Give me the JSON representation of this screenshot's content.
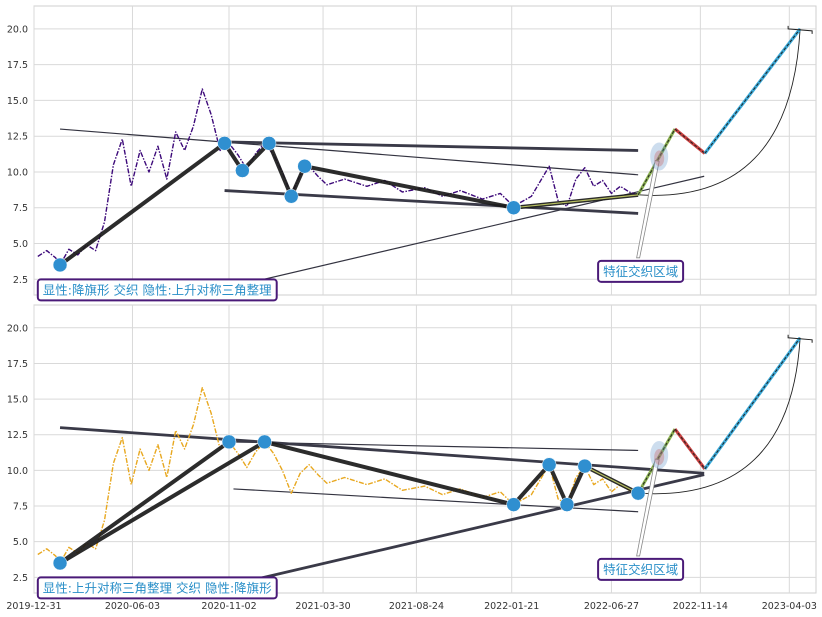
{
  "chart_data": [
    {
      "type": "line",
      "title": "",
      "xlabel": "",
      "ylabel": "",
      "ylim": [
        1.4,
        21.6
      ],
      "yticks": [
        "2.5",
        "5.0",
        "7.5",
        "10.0",
        "12.5",
        "15.0",
        "17.5",
        "20.0"
      ],
      "grid": true,
      "colors": {
        "price": "#3d0a7a",
        "points": "#2f8fd0",
        "annotation_border": "#4a1a78",
        "annotation_text": "#2a8fc8",
        "projection_up": "#3aa9d8",
        "projection_down": "#c84040"
      },
      "price_series": [
        [
          "2020-01-06",
          4.1
        ],
        [
          "2020-01-20",
          4.5
        ],
        [
          "2020-02-03",
          4.0
        ],
        [
          "2020-02-10",
          3.5
        ],
        [
          "2020-02-24",
          4.6
        ],
        [
          "2020-03-09",
          4.2
        ],
        [
          "2020-03-23",
          4.9
        ],
        [
          "2020-04-06",
          4.5
        ],
        [
          "2020-04-20",
          6.5
        ],
        [
          "2020-05-04",
          10.5
        ],
        [
          "2020-05-18",
          12.3
        ],
        [
          "2020-06-01",
          9.0
        ],
        [
          "2020-06-15",
          11.5
        ],
        [
          "2020-06-29",
          10.0
        ],
        [
          "2020-07-13",
          11.8
        ],
        [
          "2020-07-27",
          9.5
        ],
        [
          "2020-08-10",
          12.8
        ],
        [
          "2020-08-24",
          11.5
        ],
        [
          "2020-09-07",
          13.2
        ],
        [
          "2020-09-21",
          15.8
        ],
        [
          "2020-10-05",
          14.0
        ],
        [
          "2020-10-19",
          11.5
        ],
        [
          "2020-11-02",
          12.0
        ],
        [
          "2020-11-16",
          11.2
        ],
        [
          "2020-11-30",
          10.2
        ],
        [
          "2020-12-14",
          11.3
        ],
        [
          "2020-12-28",
          12.0
        ],
        [
          "2021-01-11",
          11.2
        ],
        [
          "2021-01-25",
          10.0
        ],
        [
          "2021-02-08",
          8.4
        ],
        [
          "2021-02-22",
          9.8
        ],
        [
          "2021-03-08",
          10.4
        ],
        [
          "2021-03-22",
          9.7
        ],
        [
          "2021-04-05",
          9.1
        ],
        [
          "2021-05-03",
          9.5
        ],
        [
          "2021-06-07",
          9.0
        ],
        [
          "2021-07-05",
          9.4
        ],
        [
          "2021-08-02",
          8.6
        ],
        [
          "2021-09-06",
          8.9
        ],
        [
          "2021-10-04",
          8.3
        ],
        [
          "2021-11-01",
          8.7
        ],
        [
          "2021-12-06",
          8.1
        ],
        [
          "2022-01-03",
          8.5
        ],
        [
          "2022-01-24",
          7.6
        ],
        [
          "2022-02-21",
          8.3
        ],
        [
          "2022-03-21",
          10.4
        ],
        [
          "2022-04-04",
          8.0
        ],
        [
          "2022-04-18",
          7.6
        ],
        [
          "2022-05-02",
          9.5
        ],
        [
          "2022-05-16",
          10.3
        ],
        [
          "2022-05-30",
          9.0
        ],
        [
          "2022-06-13",
          9.4
        ],
        [
          "2022-06-27",
          8.5
        ],
        [
          "2022-07-11",
          9.0
        ],
        [
          "2022-07-25",
          8.6
        ],
        [
          "2022-08-08",
          8.4
        ]
      ],
      "pattern_points": [
        [
          "2020-02-10",
          3.5
        ],
        [
          "2020-10-26",
          12.0
        ],
        [
          "2020-11-23",
          10.1
        ],
        [
          "2021-01-04",
          12.0
        ],
        [
          "2021-02-08",
          8.3
        ],
        [
          "2021-03-01",
          10.4
        ],
        [
          "2022-01-24",
          7.5
        ]
      ],
      "pattern_path": [
        [
          "2020-02-10",
          3.5
        ],
        [
          "2020-10-26",
          12.0
        ],
        [
          "2020-11-23",
          10.1
        ],
        [
          "2021-01-04",
          12.0
        ],
        [
          "2021-02-08",
          8.3
        ],
        [
          "2021-03-01",
          10.4
        ],
        [
          "2022-01-24",
          7.5
        ],
        [
          "2022-08-08",
          8.4
        ]
      ],
      "thin_lines": [
        [
          [
            "2020-02-10",
            13.0
          ],
          [
            "2022-08-08",
            9.8
          ]
        ],
        [
          [
            "2020-11-09",
            2.0
          ],
          [
            "2022-11-20",
            9.7
          ]
        ]
      ],
      "thick_lines": [
        [
          [
            "2020-10-26",
            12.1
          ],
          [
            "2022-08-08",
            11.5
          ]
        ],
        [
          [
            "2020-10-26",
            8.7
          ],
          [
            "2022-08-08",
            7.1
          ]
        ]
      ],
      "projection": [
        [
          "2022-08-08",
          8.4
        ],
        [
          "2022-10-05",
          13.0
        ],
        [
          "2022-11-21",
          11.3
        ],
        [
          "2023-04-20",
          20.0
        ]
      ],
      "end_cap": [
        "2023-04-20",
        20.0
      ],
      "callout": {
        "from": [
          "2022-08-08",
          4.0
        ],
        "to": [
          "2022-09-07",
          10.8
        ]
      },
      "annotation_left": {
        "text": "显性:降旗形 交织 隐性:上升对称三角整理",
        "at": [
          "2020-01-06",
          1.3
        ]
      },
      "annotation_right": {
        "text": "特征交织区域",
        "at": [
          "2022-06-06",
          2.6
        ]
      }
    },
    {
      "type": "line",
      "title": "",
      "xlabel": "",
      "ylabel": "",
      "ylim": [
        1.4,
        21.6
      ],
      "yticks": [
        "2.5",
        "5.0",
        "7.5",
        "10.0",
        "12.5",
        "15.0",
        "17.5",
        "20.0"
      ],
      "xticks": [
        "2019-12-31",
        "2020-06-03",
        "2020-11-02",
        "2021-03-30",
        "2021-08-24",
        "2022-01-21",
        "2022-06-27",
        "2022-11-14",
        "2023-04-03"
      ],
      "grid": true,
      "colors": {
        "price": "#e8a820",
        "points": "#2f8fd0",
        "annotation_border": "#4a1a78",
        "annotation_text": "#2a8fc8",
        "projection_up": "#3aa9d8",
        "projection_down": "#c84040"
      },
      "price_series": [
        [
          "2020-01-06",
          4.1
        ],
        [
          "2020-01-20",
          4.5
        ],
        [
          "2020-02-03",
          4.0
        ],
        [
          "2020-02-10",
          3.5
        ],
        [
          "2020-02-24",
          4.6
        ],
        [
          "2020-03-09",
          4.2
        ],
        [
          "2020-03-23",
          4.9
        ],
        [
          "2020-04-06",
          4.5
        ],
        [
          "2020-04-20",
          6.5
        ],
        [
          "2020-05-04",
          10.5
        ],
        [
          "2020-05-18",
          12.3
        ],
        [
          "2020-06-01",
          9.0
        ],
        [
          "2020-06-15",
          11.5
        ],
        [
          "2020-06-29",
          10.0
        ],
        [
          "2020-07-13",
          11.8
        ],
        [
          "2020-07-27",
          9.5
        ],
        [
          "2020-08-10",
          12.8
        ],
        [
          "2020-08-24",
          11.5
        ],
        [
          "2020-09-07",
          13.2
        ],
        [
          "2020-09-21",
          15.8
        ],
        [
          "2020-10-05",
          14.0
        ],
        [
          "2020-10-19",
          11.5
        ],
        [
          "2020-11-02",
          12.0
        ],
        [
          "2020-11-16",
          11.2
        ],
        [
          "2020-11-30",
          10.2
        ],
        [
          "2020-12-14",
          11.3
        ],
        [
          "2020-12-28",
          12.0
        ],
        [
          "2021-01-11",
          11.2
        ],
        [
          "2021-01-25",
          10.0
        ],
        [
          "2021-02-08",
          8.4
        ],
        [
          "2021-02-22",
          9.8
        ],
        [
          "2021-03-08",
          10.4
        ],
        [
          "2021-03-22",
          9.7
        ],
        [
          "2021-04-05",
          9.1
        ],
        [
          "2021-05-03",
          9.5
        ],
        [
          "2021-06-07",
          9.0
        ],
        [
          "2021-07-05",
          9.4
        ],
        [
          "2021-08-02",
          8.6
        ],
        [
          "2021-09-06",
          8.9
        ],
        [
          "2021-10-04",
          8.3
        ],
        [
          "2021-11-01",
          8.7
        ],
        [
          "2021-12-06",
          8.1
        ],
        [
          "2022-01-03",
          8.5
        ],
        [
          "2022-01-24",
          7.6
        ],
        [
          "2022-02-21",
          8.3
        ],
        [
          "2022-03-21",
          10.4
        ],
        [
          "2022-04-04",
          8.0
        ],
        [
          "2022-04-18",
          7.6
        ],
        [
          "2022-05-02",
          9.5
        ],
        [
          "2022-05-16",
          10.3
        ],
        [
          "2022-05-30",
          9.0
        ],
        [
          "2022-06-13",
          9.4
        ],
        [
          "2022-06-27",
          8.5
        ],
        [
          "2022-07-11",
          9.0
        ],
        [
          "2022-07-25",
          8.6
        ],
        [
          "2022-08-08",
          8.4
        ]
      ],
      "pattern_points": [
        [
          "2020-02-10",
          3.5
        ],
        [
          "2020-11-02",
          12.0
        ],
        [
          "2020-12-28",
          12.0
        ],
        [
          "2022-01-24",
          7.6
        ],
        [
          "2022-03-21",
          10.4
        ],
        [
          "2022-04-18",
          7.6
        ],
        [
          "2022-05-16",
          10.3
        ],
        [
          "2022-08-08",
          8.4
        ]
      ],
      "pattern_path": [
        [
          "2020-02-10",
          3.5
        ],
        [
          "2020-11-02",
          12.0
        ],
        [
          "2020-02-10",
          3.5
        ],
        [
          "2020-12-28",
          12.0
        ],
        [
          "2022-01-24",
          7.6
        ],
        [
          "2022-03-21",
          10.4
        ],
        [
          "2022-04-18",
          7.6
        ],
        [
          "2022-05-16",
          10.3
        ],
        [
          "2022-08-08",
          8.4
        ]
      ],
      "thin_lines": [
        [
          [
            "2020-11-02",
            12.0
          ],
          [
            "2022-08-08",
            11.4
          ]
        ],
        [
          [
            "2020-11-09",
            8.7
          ],
          [
            "2022-08-08",
            7.1
          ]
        ]
      ],
      "thick_lines": [
        [
          [
            "2020-02-10",
            13.0
          ],
          [
            "2022-11-20",
            9.8
          ]
        ],
        [
          [
            "2020-11-09",
            2.0
          ],
          [
            "2022-11-20",
            9.7
          ]
        ]
      ],
      "projection": [
        [
          "2022-08-08",
          8.4
        ],
        [
          "2022-10-05",
          12.9
        ],
        [
          "2022-11-21",
          10.1
        ],
        [
          "2023-04-20",
          19.3
        ]
      ],
      "end_cap": [
        "2023-04-20",
        19.3
      ],
      "callout": {
        "from": [
          "2022-08-08",
          4.0
        ],
        "to": [
          "2022-09-07",
          10.8
        ]
      },
      "annotation_left": {
        "text": "显性:上升对称三角整理 交织 隐性:降旗形",
        "at": [
          "2020-01-06",
          1.3
        ]
      },
      "annotation_right": {
        "text": "特征交织区域",
        "at": [
          "2022-06-06",
          2.6
        ]
      }
    }
  ]
}
